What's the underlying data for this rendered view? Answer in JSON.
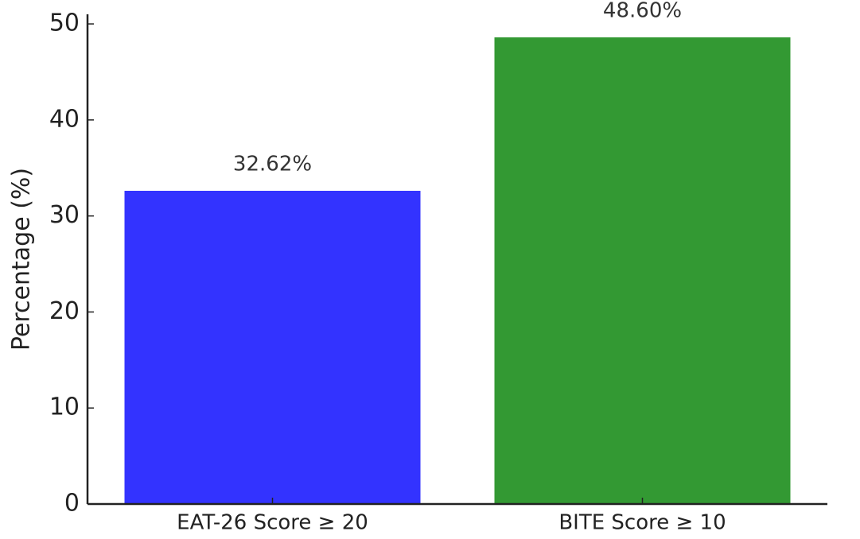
{
  "chart_data": {
    "type": "bar",
    "y_label": "Percentage (%)",
    "categories": [
      "EAT-26 Score ≥ 20",
      "BITE Score ≥ 10"
    ],
    "values": [
      32.62,
      48.6
    ],
    "value_labels": [
      "32.62%",
      "48.60%"
    ],
    "colors": [
      "#3333ff",
      "#339933"
    ],
    "ylim": [
      0,
      51
    ],
    "yticks": [
      0,
      10,
      20,
      30,
      40,
      50
    ],
    "grid": false
  }
}
